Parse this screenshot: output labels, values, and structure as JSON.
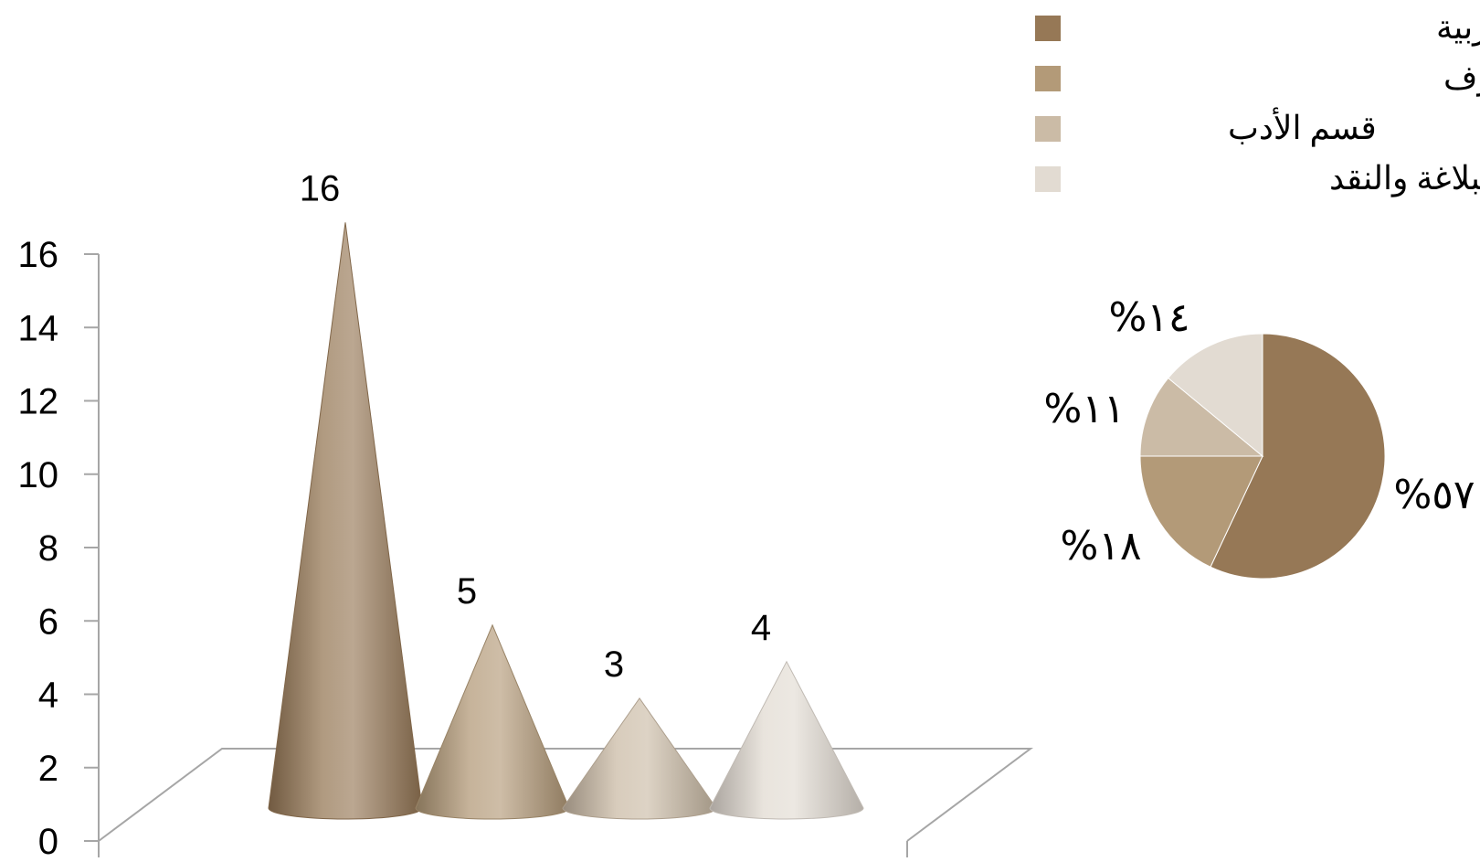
{
  "chart_data": [
    {
      "type": "bar",
      "style": "3d-cone",
      "categories": [
        "",
        "",
        "",
        ""
      ],
      "values": [
        16,
        5,
        3,
        4
      ],
      "data_labels": [
        "16",
        "5",
        "3",
        "4"
      ],
      "ylim": [
        0,
        16
      ],
      "yticks": [
        "0",
        "2",
        "4",
        "6",
        "8",
        "10",
        "12",
        "14",
        "16"
      ],
      "colors": [
        "#967856",
        "#b39a78",
        "#cbbba6",
        "#e2dbd2"
      ],
      "grid": false
    },
    {
      "type": "pie",
      "labels": [
        "قسم الدراسات العليا العربية",
        "قسم اللغة والنحو والصرف",
        "قسم الأدب",
        "قسم البلاغة والنقد"
      ],
      "values": [
        57,
        18,
        11,
        14
      ],
      "value_labels": [
        "%٥٧",
        "%١٨",
        "%١١",
        "%١٤"
      ],
      "colors": [
        "#967856",
        "#b39a78",
        "#cbbba6",
        "#e2dbd2"
      ],
      "legend_position": "top-right"
    }
  ]
}
